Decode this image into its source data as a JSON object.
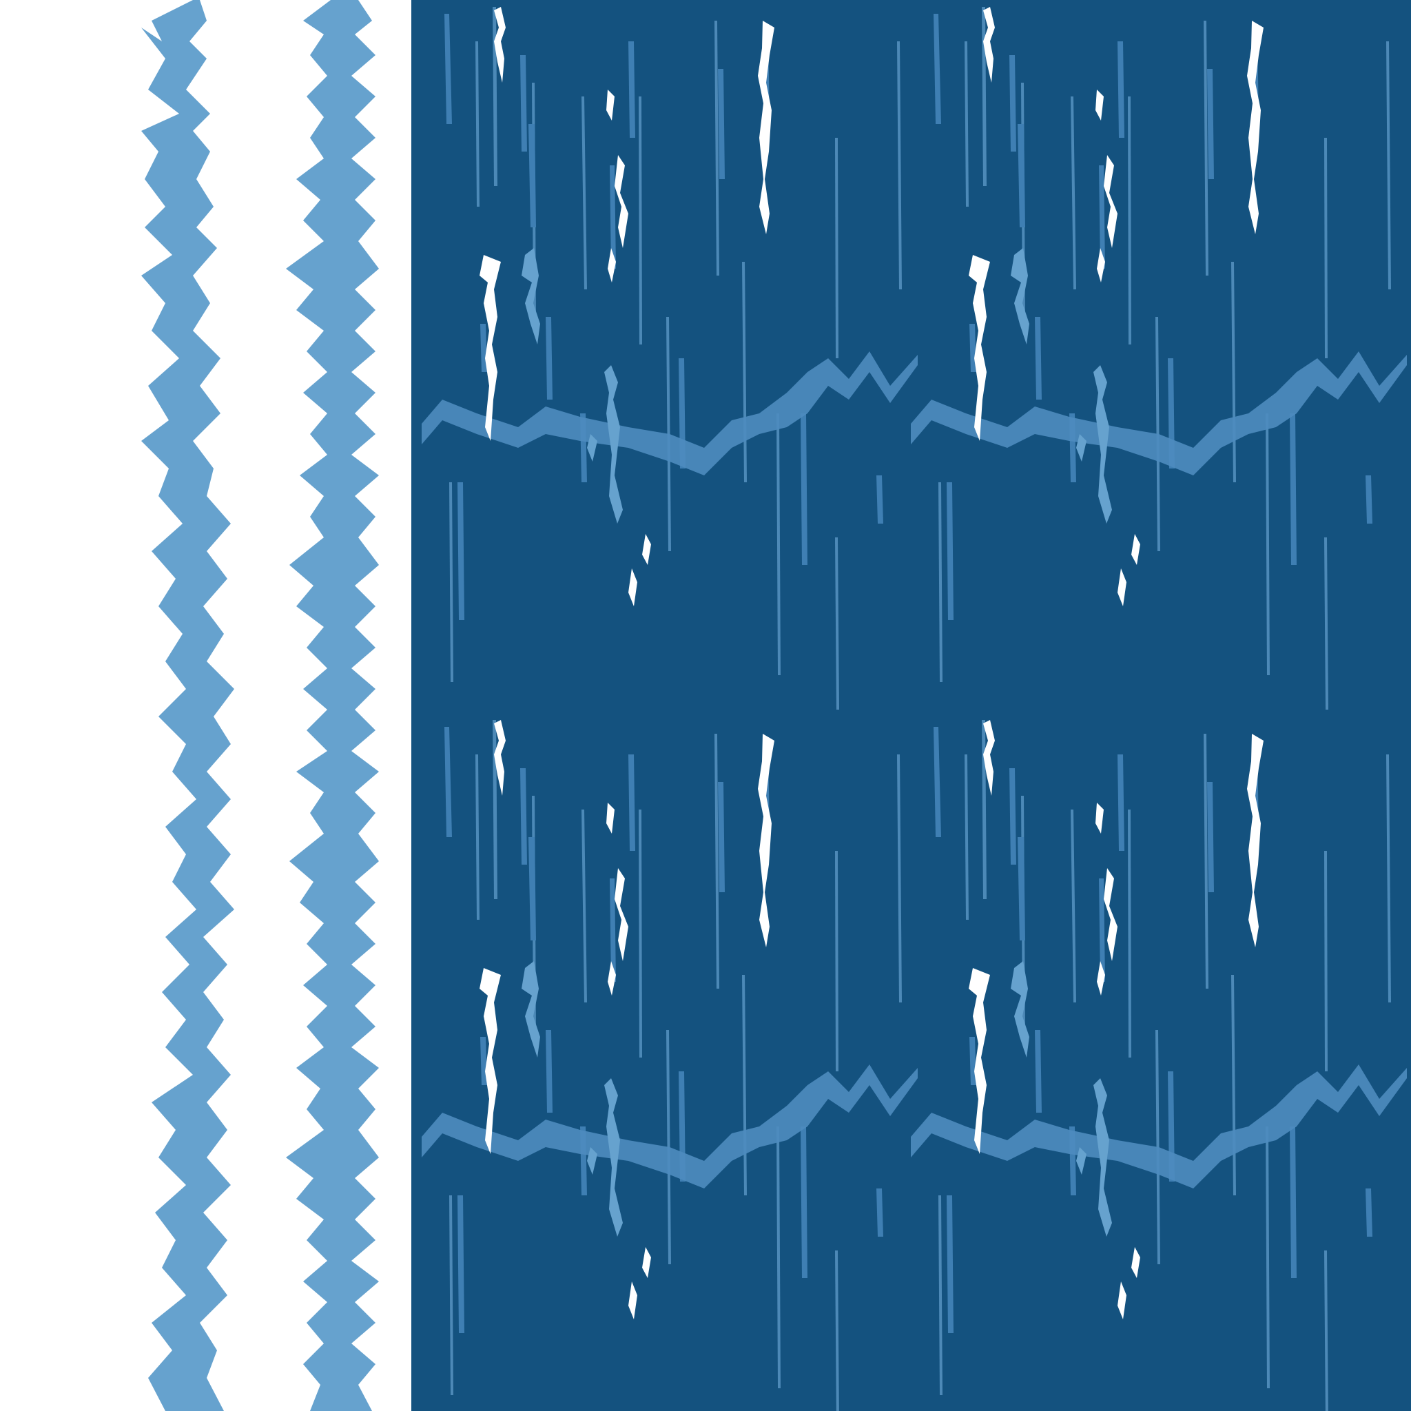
{
  "artwork": {
    "background_color": "#ffffff",
    "panel_color": "#14527f",
    "stripe_color": "#66a2ce",
    "highlight_color": "#ffffff",
    "streak_color": "#5b97c6",
    "dots_color": "#3f7fb3",
    "pattern_tiles": 4,
    "side_stripes": 2
  }
}
